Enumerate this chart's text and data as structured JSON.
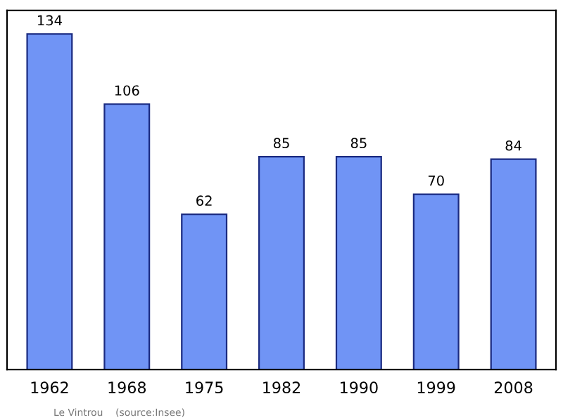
{
  "chart_data": {
    "type": "bar",
    "categories": [
      "1962",
      "1968",
      "1975",
      "1982",
      "1990",
      "1999",
      "2008"
    ],
    "values": [
      134,
      106,
      62,
      85,
      85,
      70,
      84
    ],
    "color": "#7094f5",
    "data_labels": true,
    "grid": false,
    "legend": false,
    "annotations": [
      "Le Vintrou    (source:Insee)"
    ]
  }
}
